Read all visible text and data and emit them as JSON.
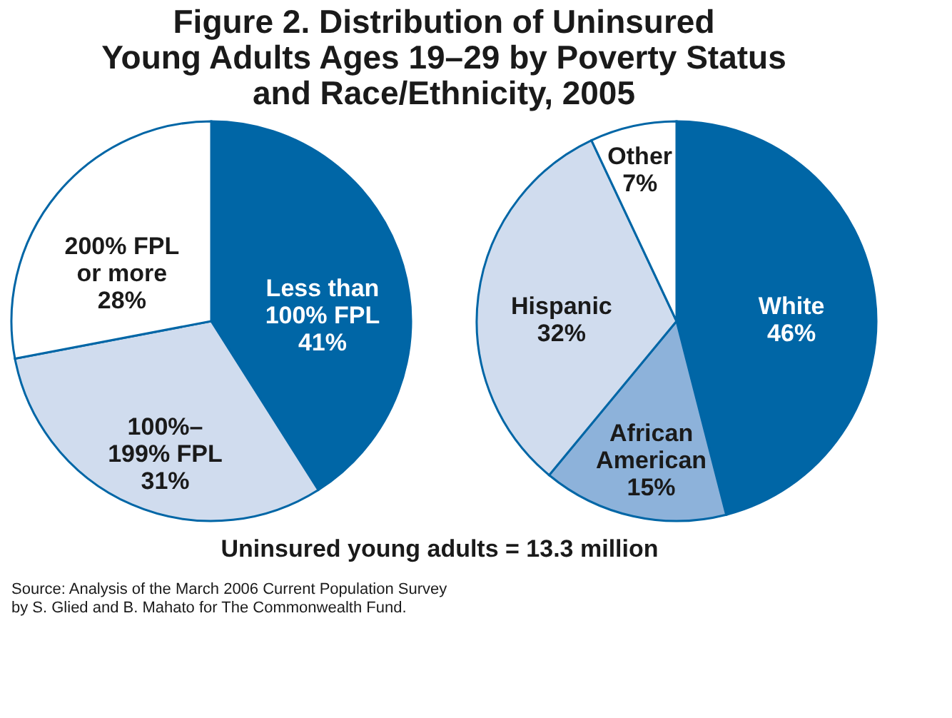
{
  "chart_data": [
    {
      "type": "pie",
      "title": "Figure 2. Distribution of Uninsured\nYoung Adults Ages 19–29 by Poverty Status\nand Race/Ethnicity, 2005",
      "categories": [
        "Less than\n100% FPL",
        "100%–\n199% FPL",
        "200% FPL\nor more"
      ],
      "values": [
        41,
        31,
        28
      ],
      "value_labels": [
        "41%",
        "31%",
        "28%"
      ],
      "colors": [
        "#0066a6",
        "#d0dcee",
        "#ffffff"
      ]
    },
    {
      "type": "pie",
      "categories": [
        "White",
        "African\nAmerican",
        "Hispanic",
        "Other"
      ],
      "values": [
        46,
        15,
        32,
        7
      ],
      "value_labels": [
        "46%",
        "15%",
        "32%",
        "7%"
      ],
      "colors": [
        "#0066a6",
        "#8db2da",
        "#d0dcee",
        "#ffffff"
      ],
      "annotations": [
        "Uninsured young adults = 13.3 million",
        "Source: Analysis of the March 2006 Current Population Survey\nby S. Glied and B. Mahato for The Commonwealth Fund."
      ]
    }
  ]
}
